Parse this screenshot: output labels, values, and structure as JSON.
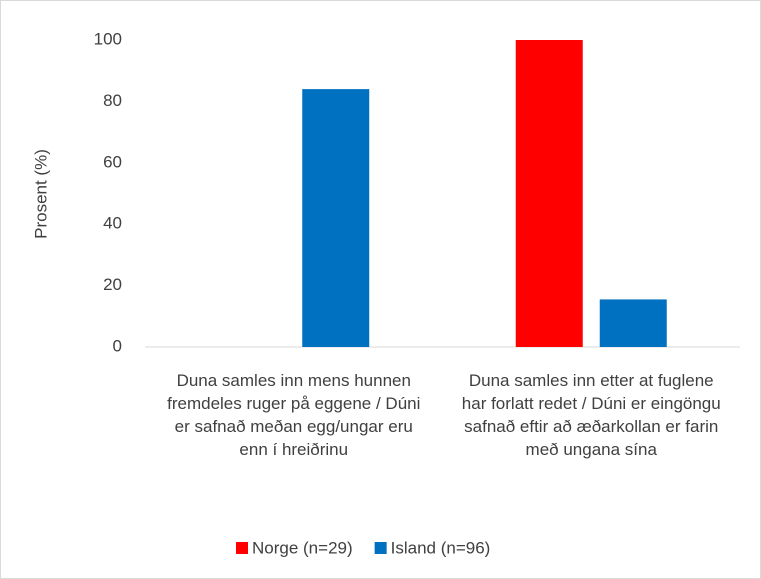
{
  "chart_data": {
    "type": "bar",
    "y_label": "Prosent (%)",
    "categories": [
      "Duna samles inn mens hunnen fremdeles ruger på eggene / Dúni er safnað meðan egg/ungar eru enn í hreiðrinu",
      "Duna samles inn etter at fuglene har forlatt redet / Dúni er eingöngu safnað eftir að æðarkollan er farin með ungana sína"
    ],
    "series": [
      {
        "name": "Norge (n=29)",
        "color": "#ff0000",
        "values": [
          0,
          100
        ]
      },
      {
        "name": "Island (n=96)",
        "color": "#0070c0",
        "values": [
          84,
          15.5
        ]
      }
    ],
    "ylim": [
      0,
      100
    ],
    "yticks": [
      0,
      20,
      40,
      60,
      80,
      100
    ],
    "grid": false,
    "legend": "bottom"
  }
}
